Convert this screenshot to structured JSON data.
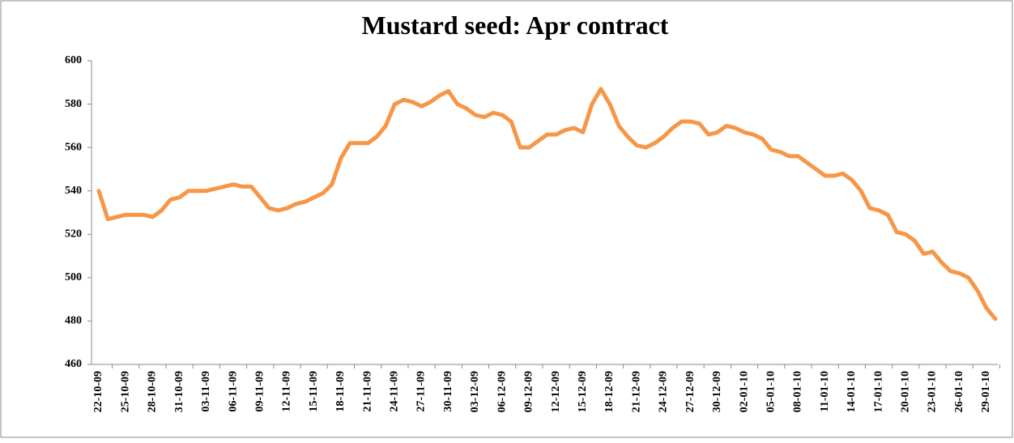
{
  "chart_data": {
    "type": "line",
    "title": "Mustard seed: Apr contract",
    "categories": [
      "22-10-09",
      null,
      null,
      "25-10-09",
      null,
      null,
      "28-10-09",
      null,
      null,
      "31-10-09",
      null,
      null,
      "03-11-09",
      null,
      null,
      "06-11-09",
      null,
      null,
      "09-11-09",
      null,
      null,
      "12-11-09",
      null,
      null,
      "15-11-09",
      null,
      null,
      "18-11-09",
      null,
      null,
      "21-11-09",
      null,
      null,
      "24-11-09",
      null,
      null,
      "27-11-09",
      null,
      null,
      "30-11-09",
      null,
      null,
      "03-12-09",
      null,
      null,
      "06-12-09",
      null,
      null,
      "09-12-09",
      null,
      null,
      "12-12-09",
      null,
      null,
      "15-12-09",
      null,
      null,
      "18-12-09",
      null,
      null,
      "21-12-09",
      null,
      null,
      "24-12-09",
      null,
      null,
      "27-12-09",
      null,
      null,
      "30-12-09",
      null,
      null,
      "02-01-10",
      null,
      null,
      "05-01-10",
      null,
      null,
      "08-01-10",
      null,
      null,
      "11-01-10",
      null,
      null,
      "14-01-10",
      null,
      null,
      "17-01-10",
      null,
      null,
      "20-01-10",
      null,
      null,
      "23-01-10",
      null,
      null,
      "26-01-10",
      null,
      null,
      "29-01-10",
      null
    ],
    "series": [
      {
        "color": "#f79646",
        "values": [
          540,
          527,
          528,
          529,
          529,
          529,
          528,
          531,
          536,
          537,
          540,
          540,
          540,
          541,
          542,
          543,
          542,
          542,
          537,
          532,
          531,
          532,
          534,
          535,
          537,
          539,
          543,
          555,
          562,
          562,
          562,
          565,
          570,
          580,
          582,
          581,
          579,
          581,
          584,
          586,
          580,
          578,
          575,
          574,
          576,
          575,
          572,
          560,
          560,
          563,
          566,
          566,
          568,
          569,
          567,
          580,
          587,
          580,
          570,
          565,
          561,
          560,
          562,
          565,
          569,
          572,
          572,
          571,
          566,
          567,
          570,
          569,
          567,
          566,
          564,
          559,
          558,
          556,
          556,
          553,
          550,
          547,
          547,
          548,
          545,
          540,
          532,
          531,
          529,
          521,
          520,
          517,
          511,
          512,
          507,
          503,
          502,
          500,
          494,
          486,
          481
        ]
      }
    ],
    "ylim": [
      460,
      600
    ],
    "yticks": [
      460,
      480,
      500,
      520,
      540,
      560,
      580,
      600
    ],
    "grid": false
  }
}
